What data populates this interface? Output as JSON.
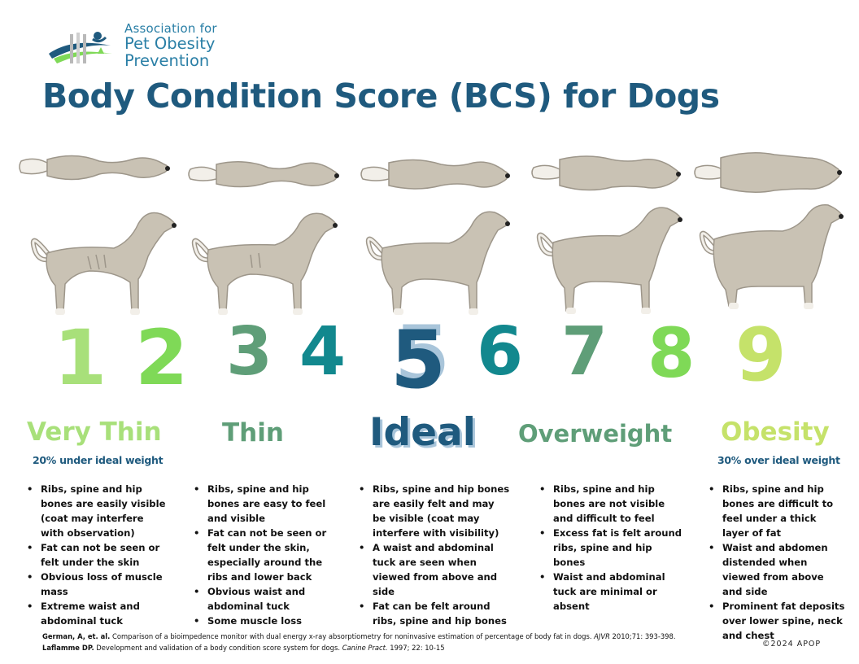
{
  "logo": {
    "line1": "Association for",
    "line2": "Pet Obesity",
    "line3": "Prevention"
  },
  "title": "Body Condition Score (BCS) for Dogs",
  "scores": [
    {
      "label": "1",
      "color": "#a8e07a"
    },
    {
      "label": "2",
      "color": "#7fd957"
    },
    {
      "label": "3",
      "color": "#5f9e78"
    },
    {
      "label": "4",
      "color": "#12888e"
    },
    {
      "label": "5",
      "color": "#1f5a7e"
    },
    {
      "label": "6",
      "color": "#12888e"
    },
    {
      "label": "7",
      "color": "#5f9e78"
    },
    {
      "label": "8",
      "color": "#7fd957"
    },
    {
      "label": "9",
      "color": "#c5e26a"
    }
  ],
  "categories": [
    {
      "name": "Very Thin",
      "subtitle": "20% under ideal weight",
      "color": "#a8e07a",
      "bullets": [
        "Ribs, spine and hip bones are easily visible (coat may interfere with observation)",
        "Fat can not be seen or felt under the skin",
        "Obvious loss of muscle mass",
        "Extreme waist and abdominal tuck"
      ]
    },
    {
      "name": "Thin",
      "subtitle": "",
      "color": "#5f9e78",
      "bullets": [
        "Ribs, spine and hip bones are easy to feel and visible",
        "Fat can not be seen or felt under the skin, especially around the ribs and lower back",
        "Obvious waist and abdominal tuck",
        "Some muscle loss"
      ]
    },
    {
      "name": "Ideal",
      "subtitle": "",
      "color": "#1f5a7e",
      "bullets": [
        "Ribs, spine and hip bones are easily felt and may be visible (coat may interfere with visibility)",
        "A waist and abdominal tuck are seen when viewed from above and side",
        "Fat can be felt around ribs, spine and hip bones"
      ]
    },
    {
      "name": "Overweight",
      "subtitle": "",
      "color": "#5f9e78",
      "bullets": [
        "Ribs, spine and hip bones are not visible and difficult to feel",
        "Excess fat is felt around ribs, spine and hip bones",
        "Waist and abdominal tuck are minimal or absent"
      ]
    },
    {
      "name": "Obesity",
      "subtitle": "30% over ideal weight",
      "color": "#c5e26a",
      "bullets": [
        "Ribs, spine and hip bones are difficult to feel under a thick layer of fat",
        "Waist and abdomen distended when viewed from above and side",
        "Prominent fat deposits over lower spine, neck and chest"
      ]
    }
  ],
  "references": [
    {
      "author": "German, A, et. al.",
      "text": " Comparison of a bioimpedence monitor with dual energy x-ray absorptiometry for noninvasive estimation of percentage of body fat in dogs. ",
      "journal": "AJVR",
      "tail": " 2010;71: 393-398."
    },
    {
      "author": "Laflamme DP.",
      "text": " Development and validation of a body condition score system for dogs. ",
      "journal": "Canine Pract.",
      "tail": " 1997; 22: 10-15"
    }
  ],
  "copyright": "©2024 APOP",
  "colors": {
    "title": "#1f5a7e",
    "dog_fill": "#c9c2b4",
    "dog_stroke": "#9d968a",
    "logo": "#2a7fa6"
  }
}
